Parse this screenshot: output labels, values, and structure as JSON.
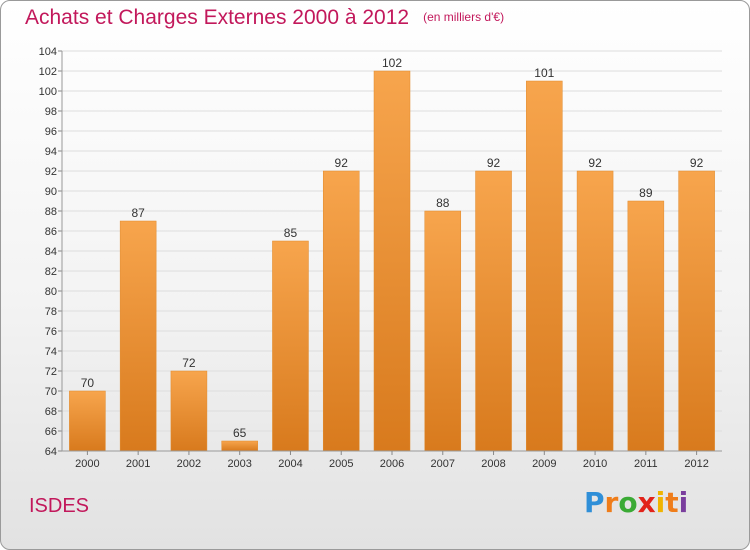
{
  "header": {
    "title": "Achats et Charges Externes 2000 à 2012",
    "unit": "(en milliers d'€)"
  },
  "footer": {
    "commune": "ISDES",
    "logo_text": "Proxiti"
  },
  "colors": {
    "title": "#c2185b",
    "bar_top": "#f7a54d",
    "bar_bottom": "#d87a1d",
    "grid": "#dddddd"
  },
  "chart_data": {
    "type": "bar",
    "title": "Achats et Charges Externes 2000 à 2012",
    "subtitle": "(en milliers d'€)",
    "categories": [
      "2000",
      "2001",
      "2002",
      "2003",
      "2004",
      "2005",
      "2006",
      "2007",
      "2008",
      "2009",
      "2010",
      "2011",
      "2012"
    ],
    "values": [
      70,
      87,
      72,
      65,
      85,
      92,
      102,
      88,
      92,
      101,
      92,
      89,
      92
    ],
    "ylim": [
      64,
      104
    ],
    "yticks": [
      64,
      66,
      68,
      70,
      72,
      74,
      76,
      78,
      80,
      82,
      84,
      86,
      88,
      90,
      92,
      94,
      96,
      98,
      100,
      102,
      104
    ],
    "grid": true,
    "data_labels": true
  }
}
